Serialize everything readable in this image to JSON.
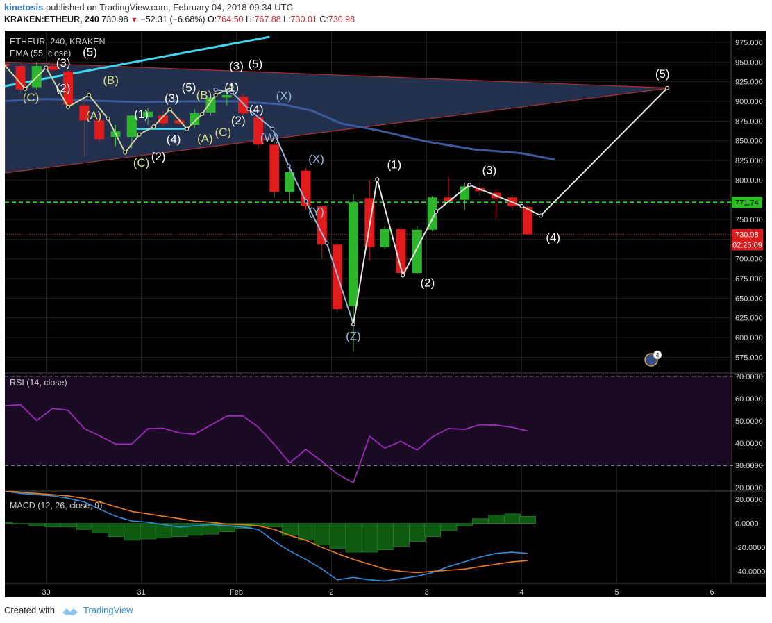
{
  "header": {
    "author": "kinetosis",
    "published_text": "published on TradingView.com, February 04, 2018 09:34 UTC",
    "symbol": "KRAKEN:ETHEUR, 240",
    "last": "730.98",
    "change": "−52.31 (−6.68%)",
    "open_label": "O:",
    "open": "764.50",
    "high_label": "H:",
    "high": "767.88",
    "low_label": "L:",
    "low": "730.01",
    "close_label": "C:",
    "close": "730.98"
  },
  "footer": {
    "created_with": "Created with",
    "brand": "TradingView"
  },
  "chart_data": [
    {
      "type": "candlestick",
      "title": "ETHEUR, 240, KRAKEN",
      "indicator_label": "EMA (55, close)",
      "y_ticks": [
        975,
        950,
        925,
        900,
        875,
        850,
        825,
        800,
        775,
        750,
        725,
        700,
        675,
        650,
        625,
        600,
        575
      ],
      "ylim": [
        555,
        990
      ],
      "x_ticks": [
        {
          "t": 0.5,
          "label": "30"
        },
        {
          "t": 1.5,
          "label": "31"
        },
        {
          "t": 2.5,
          "label": "Feb"
        },
        {
          "t": 3.5,
          "label": "2"
        },
        {
          "t": 4.5,
          "label": "3"
        },
        {
          "t": 5.5,
          "label": "4"
        },
        {
          "t": 6.5,
          "label": "5"
        },
        {
          "t": 7.5,
          "label": "6"
        }
      ],
      "price_label_level": "771.74",
      "last_price_label": "730.98",
      "countdown_label": "02:25:09",
      "marker_badge": "4",
      "candles": [
        {
          "t": 0.06,
          "o": 948,
          "h": 955,
          "l": 945,
          "c": 945
        },
        {
          "t": 0.23,
          "o": 945,
          "h": 948,
          "l": 910,
          "c": 915
        },
        {
          "t": 0.4,
          "o": 918,
          "h": 950,
          "l": 915,
          "c": 945
        },
        {
          "t": 0.57,
          "o": 945,
          "h": 950,
          "l": 938,
          "c": 940
        },
        {
          "t": 0.73,
          "o": 938,
          "h": 940,
          "l": 893,
          "c": 896
        },
        {
          "t": 0.9,
          "o": 895,
          "h": 905,
          "l": 830,
          "c": 876
        },
        {
          "t": 1.06,
          "o": 876,
          "h": 880,
          "l": 848,
          "c": 852
        },
        {
          "t": 1.23,
          "o": 855,
          "h": 870,
          "l": 843,
          "c": 862
        },
        {
          "t": 1.4,
          "o": 855,
          "h": 883,
          "l": 840,
          "c": 882
        },
        {
          "t": 1.57,
          "o": 880,
          "h": 892,
          "l": 870,
          "c": 887
        },
        {
          "t": 1.73,
          "o": 882,
          "h": 888,
          "l": 868,
          "c": 872
        },
        {
          "t": 1.9,
          "o": 876,
          "h": 880,
          "l": 870,
          "c": 872
        },
        {
          "t": 2.06,
          "o": 870,
          "h": 890,
          "l": 866,
          "c": 885
        },
        {
          "t": 2.23,
          "o": 886,
          "h": 910,
          "l": 882,
          "c": 905
        },
        {
          "t": 2.4,
          "o": 905,
          "h": 915,
          "l": 895,
          "c": 908
        },
        {
          "t": 2.57,
          "o": 906,
          "h": 910,
          "l": 882,
          "c": 885
        },
        {
          "t": 2.73,
          "o": 880,
          "h": 883,
          "l": 840,
          "c": 845
        },
        {
          "t": 2.9,
          "o": 845,
          "h": 848,
          "l": 778,
          "c": 785
        },
        {
          "t": 3.06,
          "o": 785,
          "h": 815,
          "l": 772,
          "c": 810
        },
        {
          "t": 3.23,
          "o": 812,
          "h": 815,
          "l": 762,
          "c": 767
        },
        {
          "t": 3.4,
          "o": 767,
          "h": 768,
          "l": 700,
          "c": 718
        },
        {
          "t": 3.56,
          "o": 718,
          "h": 720,
          "l": 632,
          "c": 636
        },
        {
          "t": 3.73,
          "o": 640,
          "h": 782,
          "l": 582,
          "c": 772
        },
        {
          "t": 3.9,
          "o": 777,
          "h": 800,
          "l": 698,
          "c": 715
        },
        {
          "t": 4.06,
          "o": 715,
          "h": 742,
          "l": 712,
          "c": 738
        },
        {
          "t": 4.23,
          "o": 738,
          "h": 740,
          "l": 678,
          "c": 682
        },
        {
          "t": 4.4,
          "o": 682,
          "h": 742,
          "l": 680,
          "c": 737
        },
        {
          "t": 4.56,
          "o": 737,
          "h": 780,
          "l": 735,
          "c": 778
        },
        {
          "t": 4.73,
          "o": 778,
          "h": 805,
          "l": 772,
          "c": 773
        },
        {
          "t": 4.9,
          "o": 775,
          "h": 797,
          "l": 762,
          "c": 792
        },
        {
          "t": 5.06,
          "o": 790,
          "h": 797,
          "l": 780,
          "c": 786
        },
        {
          "t": 5.23,
          "o": 784,
          "h": 788,
          "l": 752,
          "c": 777
        },
        {
          "t": 5.4,
          "o": 778,
          "h": 781,
          "l": 762,
          "c": 767
        },
        {
          "t": 5.56,
          "o": 766,
          "h": 768,
          "l": 730,
          "c": 731
        }
      ],
      "ema": [
        {
          "t": 0.0,
          "v": 900
        },
        {
          "t": 0.5,
          "v": 903
        },
        {
          "t": 1.0,
          "v": 901
        },
        {
          "t": 1.5,
          "v": 899
        },
        {
          "t": 2.0,
          "v": 900
        },
        {
          "t": 2.5,
          "v": 900
        },
        {
          "t": 3.0,
          "v": 896
        },
        {
          "t": 3.3,
          "v": 888
        },
        {
          "t": 3.6,
          "v": 872
        },
        {
          "t": 4.0,
          "v": 863
        },
        {
          "t": 4.5,
          "v": 849
        },
        {
          "t": 5.0,
          "v": 839
        },
        {
          "t": 5.5,
          "v": 834
        },
        {
          "t": 5.85,
          "v": 826
        }
      ],
      "triangle": {
        "left_top": 950,
        "left_bottom": 809,
        "apex_t": 7.06,
        "apex_v": 917
      },
      "trendline": [
        {
          "t": 0.0,
          "v": 918
        },
        {
          "t": 2.85,
          "v": 982
        }
      ],
      "support_segment": {
        "t0": 1.43,
        "t1": 1.97,
        "v": 865
      },
      "level_line": 771.74,
      "last_line": 730.98,
      "waves": [
        {
          "color": "#cfd9a0",
          "points": [
            {
              "t": 0.0,
              "v": 955
            },
            {
              "t": 0.28,
              "v": 916
            },
            {
              "t": 0.5,
              "v": 943
            },
            {
              "t": 0.73,
              "v": 893
            },
            {
              "t": 0.95,
              "v": 908
            },
            {
              "t": 1.15,
              "v": 878
            },
            {
              "t": 1.33,
              "v": 835
            },
            {
              "t": 1.48,
              "v": 858
            },
            {
              "t": 1.63,
              "v": 868
            },
            {
              "t": 1.8,
              "v": 890
            },
            {
              "t": 1.98,
              "v": 865
            },
            {
              "t": 2.14,
              "v": 884
            },
            {
              "t": 2.28,
              "v": 908
            },
            {
              "t": 2.45,
              "v": 918
            }
          ]
        },
        {
          "color": "#9ab6d8",
          "points": [
            {
              "t": 2.28,
              "v": 915
            },
            {
              "t": 2.45,
              "v": 912
            },
            {
              "t": 2.63,
              "v": 890
            },
            {
              "t": 2.88,
              "v": 865
            },
            {
              "t": 3.05,
              "v": 818
            },
            {
              "t": 3.23,
              "v": 773
            },
            {
              "t": 3.45,
              "v": 720
            },
            {
              "t": 3.73,
              "v": 617
            }
          ]
        },
        {
          "color": "#e8e8e8",
          "points": [
            {
              "t": 3.73,
              "v": 617
            },
            {
              "t": 3.98,
              "v": 801
            },
            {
              "t": 4.25,
              "v": 679
            },
            {
              "t": 4.6,
              "v": 760
            },
            {
              "t": 4.95,
              "v": 794
            },
            {
              "t": 5.5,
              "v": 767
            },
            {
              "t": 5.7,
              "v": 755
            },
            {
              "t": 7.03,
              "v": 917
            }
          ]
        }
      ],
      "wave_labels": [
        {
          "text": "(C)",
          "t": 0.34,
          "v": 900,
          "color": "#d7dc8a"
        },
        {
          "text": "(2)",
          "t": 0.68,
          "v": 912,
          "color": "#ffffff"
        },
        {
          "text": "(3)",
          "t": 0.68,
          "v": 944,
          "color": "#ffffff"
        },
        {
          "text": "(5)",
          "t": 0.96,
          "v": 958,
          "color": "#ffffff"
        },
        {
          "text": "(B)",
          "t": 1.18,
          "v": 922,
          "color": "#d7dc8a"
        },
        {
          "text": "(A)",
          "t": 1.0,
          "v": 877,
          "color": "#d7dc8a"
        },
        {
          "text": "(1)",
          "t": 1.5,
          "v": 879,
          "color": "#ffffff"
        },
        {
          "text": "(C)",
          "t": 1.5,
          "v": 817,
          "color": "#d7dc8a"
        },
        {
          "text": "(2)",
          "t": 1.68,
          "v": 825,
          "color": "#ffffff"
        },
        {
          "text": "(3)",
          "t": 1.82,
          "v": 899,
          "color": "#ffffff"
        },
        {
          "text": "(4)",
          "t": 1.84,
          "v": 847,
          "color": "#ffffff"
        },
        {
          "text": "(5)",
          "t": 2.0,
          "v": 913,
          "color": "#ffffff"
        },
        {
          "text": "(B)",
          "t": 2.16,
          "v": 903,
          "color": "#d7dc8a"
        },
        {
          "text": "(A)",
          "t": 2.17,
          "v": 848,
          "color": "#d7dc8a"
        },
        {
          "text": "(C)",
          "t": 2.36,
          "v": 856,
          "color": "#d7dc8a"
        },
        {
          "text": "(2)",
          "t": 2.52,
          "v": 871,
          "color": "#ffffff"
        },
        {
          "text": "(3)",
          "t": 2.5,
          "v": 940,
          "color": "#ffffff"
        },
        {
          "text": "(1)",
          "t": 2.45,
          "v": 913,
          "color": "#ffffff"
        },
        {
          "text": "(5)",
          "t": 2.7,
          "v": 943,
          "color": "#ffffff"
        },
        {
          "text": "(4)",
          "t": 2.71,
          "v": 885,
          "color": "#ffffff"
        },
        {
          "text": "(X)",
          "t": 3.0,
          "v": 902,
          "color": "#9ab6d8"
        },
        {
          "text": "(W)",
          "t": 2.85,
          "v": 849,
          "color": "#9ab6d8"
        },
        {
          "text": "(X)",
          "t": 3.34,
          "v": 822,
          "color": "#9ab6d8"
        },
        {
          "text": "(Y)",
          "t": 3.34,
          "v": 755,
          "color": "#9ab6d8"
        },
        {
          "text": "(Z)",
          "t": 3.73,
          "v": 597,
          "color": "#9ab6d8"
        },
        {
          "text": "(1)",
          "t": 4.16,
          "v": 815,
          "color": "#ffffff"
        },
        {
          "text": "(2)",
          "t": 4.51,
          "v": 665,
          "color": "#ffffff"
        },
        {
          "text": "(3)",
          "t": 5.16,
          "v": 808,
          "color": "#ffffff"
        },
        {
          "text": "(4)",
          "t": 5.83,
          "v": 722,
          "color": "#ffffff"
        },
        {
          "text": "(5)",
          "t": 6.98,
          "v": 930,
          "color": "#ffffff"
        }
      ]
    },
    {
      "type": "line",
      "title": "RSI (14, close)",
      "y_ticks": [
        70,
        60,
        50,
        40,
        30,
        20
      ],
      "ylim": [
        18.5,
        71.5
      ],
      "bands": [
        30,
        70
      ],
      "x": [
        0.06,
        0.23,
        0.4,
        0.57,
        0.73,
        0.9,
        1.06,
        1.23,
        1.4,
        1.57,
        1.73,
        1.9,
        2.06,
        2.23,
        2.4,
        2.57,
        2.73,
        2.9,
        3.06,
        3.23,
        3.4,
        3.56,
        3.73,
        3.9,
        4.06,
        4.23,
        4.4,
        4.56,
        4.73,
        4.9,
        5.06,
        5.23,
        5.4,
        5.56
      ],
      "values": [
        56.8,
        57.3,
        50.2,
        55.6,
        54.7,
        46.6,
        43.3,
        39.6,
        39.6,
        46.5,
        46.7,
        44.6,
        44.0,
        48.1,
        52.2,
        52.2,
        47.2,
        39.4,
        31.1,
        37.2,
        31.8,
        26.2,
        22.2,
        43.1,
        37.8,
        40.8,
        36.9,
        42.8,
        46.6,
        46.2,
        48.3,
        48.1,
        47.1,
        45.5
      ]
    },
    {
      "type": "bar",
      "title": "MACD (12, 26, close, 9)",
      "y_ticks": [
        20,
        0,
        -20,
        -40
      ],
      "ylim": [
        -50,
        27
      ],
      "x": [
        0.06,
        0.23,
        0.4,
        0.57,
        0.73,
        0.9,
        1.06,
        1.23,
        1.4,
        1.57,
        1.73,
        1.9,
        2.06,
        2.23,
        2.4,
        2.57,
        2.73,
        2.9,
        3.06,
        3.23,
        3.4,
        3.56,
        3.73,
        3.9,
        4.06,
        4.23,
        4.4,
        4.56,
        4.73,
        4.9,
        5.06,
        5.23,
        5.4,
        5.56
      ],
      "histogram": [
        1,
        -0.5,
        -2,
        -3,
        -3,
        -5,
        -8,
        -11,
        -14,
        -13,
        -12,
        -11,
        -10,
        -9,
        -7,
        -4,
        -2,
        -3,
        -10,
        -14,
        -18,
        -21,
        -24,
        -24,
        -22,
        -19,
        -15,
        -11,
        -6,
        -2,
        4,
        7,
        8,
        6
      ],
      "macd": [
        27,
        25,
        24,
        23,
        21,
        18,
        12,
        6,
        2,
        1,
        -1,
        -3,
        -2,
        -1,
        -2,
        -3,
        -5,
        -15,
        -23,
        -30,
        -38,
        -47,
        -45,
        -47,
        -48,
        -46,
        -44,
        -41,
        -36,
        -32,
        -28,
        -25,
        -24,
        -25
      ],
      "signal": [
        27,
        26,
        25,
        24,
        23,
        21,
        18,
        14,
        10,
        8,
        6,
        4,
        2,
        1,
        -0.5,
        -1,
        -2,
        -5,
        -10,
        -14,
        -20,
        -25,
        -30,
        -34,
        -38,
        -40,
        -41,
        -40,
        -39,
        -38,
        -36,
        -34,
        -32,
        -31
      ]
    }
  ]
}
